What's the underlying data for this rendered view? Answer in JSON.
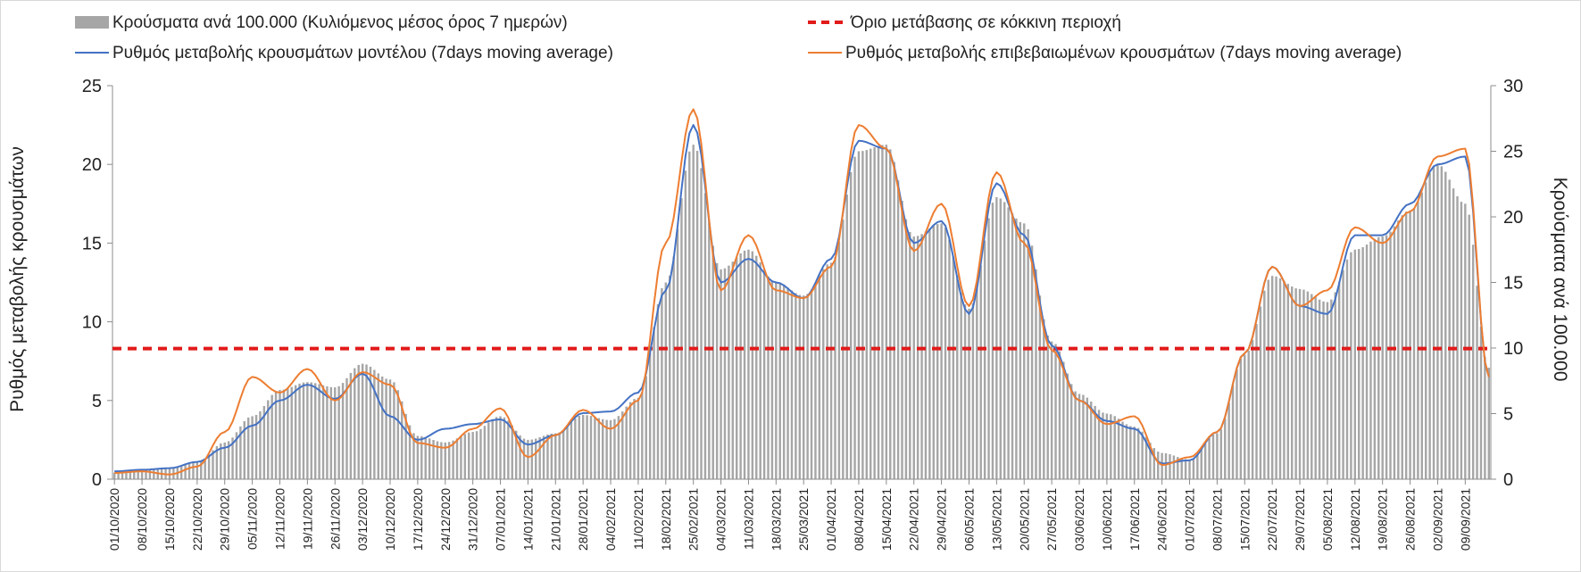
{
  "chart_data": {
    "type": "bar+line",
    "title": "",
    "legend": {
      "placement": "top",
      "entries": [
        {
          "label": "Κρούσματα ανά 100.000 (Κυλιόμενος μέσος όρος 7 ημερών)",
          "kind": "bar",
          "color": "#a6a6a6"
        },
        {
          "label": "Όριο μετάβασης σε κόκκινη περιοχή",
          "kind": "dashed-line",
          "color": "#e21a1a"
        },
        {
          "label": "Ρυθμός μεταβολής κρουσμάτων μοντέλου (7days moving average)",
          "kind": "line",
          "color": "#4472c4"
        },
        {
          "label": "Ρυθμός μεταβολής επιβεβαιωμένων κρουσμάτων (7days moving average)",
          "kind": "line",
          "color": "#ed7d31"
        }
      ]
    },
    "ylabel_left": "Ρυθμός μεταβολής κρουσμάτων",
    "ylabel_right": "Κρούσματα ανά 100.000",
    "ylim_left": [
      0,
      25
    ],
    "ylim_right": [
      0,
      30
    ],
    "yticks_left": [
      "0",
      "5",
      "10",
      "15",
      "20",
      "25"
    ],
    "yticks_right": [
      "0",
      "5",
      "10",
      "15",
      "20",
      "25",
      "30"
    ],
    "x_start": "2020-10-01",
    "x_end": "2021-09-15",
    "x_tick_labels": [
      "01/10/2020",
      "08/10/2020",
      "15/10/2020",
      "22/10/2020",
      "29/10/2020",
      "05/11/2020",
      "12/11/2020",
      "19/11/2020",
      "26/11/2020",
      "03/12/2020",
      "10/12/2020",
      "17/12/2020",
      "24/12/2020",
      "31/12/2020",
      "07/01/2021",
      "14/01/2021",
      "21/01/2021",
      "28/01/2021",
      "04/02/2021",
      "11/02/2021",
      "18/02/2021",
      "25/02/2021",
      "04/03/2021",
      "11/03/2021",
      "18/03/2021",
      "25/03/2021",
      "01/04/2021",
      "08/04/2021",
      "15/04/2021",
      "22/04/2021",
      "29/04/2021",
      "06/05/2021",
      "13/05/2021",
      "20/05/2021",
      "27/05/2021",
      "03/06/2021",
      "10/06/2021",
      "17/06/2021",
      "24/06/2021",
      "01/07/2021",
      "08/07/2021",
      "15/07/2021",
      "22/07/2021",
      "29/07/2021",
      "05/08/2021",
      "12/08/2021",
      "19/08/2021",
      "26/08/2021",
      "02/09/2021",
      "09/09/2021"
    ],
    "threshold": {
      "name": "Όριο μετάβασης σε κόκκινη περιοχή",
      "axis": "left",
      "value": 8.3
    },
    "series": [
      {
        "name": "Κρούσματα ανά 100.000 (Κυλιόμενος μέσος όρος 7 ημερών)",
        "type": "bar",
        "axis": "right",
        "points": [
          [
            "2020-10-01",
            0.5
          ],
          [
            "2020-10-08",
            0.7
          ],
          [
            "2020-10-15",
            0.9
          ],
          [
            "2020-10-22",
            1.3
          ],
          [
            "2020-10-29",
            2.8
          ],
          [
            "2020-11-05",
            4.8
          ],
          [
            "2020-11-12",
            6.8
          ],
          [
            "2020-11-19",
            7.4
          ],
          [
            "2020-11-26",
            7.0
          ],
          [
            "2020-12-03",
            8.8
          ],
          [
            "2020-12-10",
            7.6
          ],
          [
            "2020-12-17",
            3.3
          ],
          [
            "2020-12-24",
            2.8
          ],
          [
            "2020-12-31",
            3.6
          ],
          [
            "2021-01-07",
            4.8
          ],
          [
            "2021-01-14",
            3.0
          ],
          [
            "2021-01-21",
            3.5
          ],
          [
            "2021-01-28",
            4.9
          ],
          [
            "2021-02-04",
            4.5
          ],
          [
            "2021-02-11",
            6.2
          ],
          [
            "2021-02-18",
            15.0
          ],
          [
            "2021-02-25",
            25.5
          ],
          [
            "2021-03-04",
            16.0
          ],
          [
            "2021-03-11",
            17.5
          ],
          [
            "2021-03-18",
            15.0
          ],
          [
            "2021-03-25",
            14.0
          ],
          [
            "2021-04-01",
            16.5
          ],
          [
            "2021-04-08",
            25.0
          ],
          [
            "2021-04-15",
            25.5
          ],
          [
            "2021-04-22",
            18.5
          ],
          [
            "2021-04-29",
            19.5
          ],
          [
            "2021-05-06",
            13.0
          ],
          [
            "2021-05-13",
            21.5
          ],
          [
            "2021-05-20",
            19.5
          ],
          [
            "2021-05-27",
            10.5
          ],
          [
            "2021-06-03",
            6.5
          ],
          [
            "2021-06-10",
            5.0
          ],
          [
            "2021-06-17",
            4.0
          ],
          [
            "2021-06-24",
            2.0
          ],
          [
            "2021-07-01",
            1.5
          ],
          [
            "2021-07-08",
            3.5
          ],
          [
            "2021-07-15",
            9.5
          ],
          [
            "2021-07-22",
            15.5
          ],
          [
            "2021-07-29",
            14.5
          ],
          [
            "2021-08-05",
            13.5
          ],
          [
            "2021-08-12",
            17.5
          ],
          [
            "2021-08-19",
            18.5
          ],
          [
            "2021-08-26",
            20.5
          ],
          [
            "2021-09-02",
            24.0
          ],
          [
            "2021-09-09",
            21.0
          ],
          [
            "2021-09-15",
            8.5
          ]
        ]
      },
      {
        "name": "Ρυθμός μεταβολής κρουσμάτων μοντέλου (7days moving average)",
        "type": "line",
        "axis": "left",
        "points": [
          [
            "2020-10-01",
            0.5
          ],
          [
            "2020-10-08",
            0.6
          ],
          [
            "2020-10-15",
            0.7
          ],
          [
            "2020-10-22",
            1.1
          ],
          [
            "2020-10-29",
            2.0
          ],
          [
            "2020-11-05",
            3.4
          ],
          [
            "2020-11-12",
            5.0
          ],
          [
            "2020-11-19",
            6.0
          ],
          [
            "2020-11-26",
            5.1
          ],
          [
            "2020-12-03",
            6.7
          ],
          [
            "2020-12-10",
            4.0
          ],
          [
            "2020-12-17",
            2.5
          ],
          [
            "2020-12-24",
            3.2
          ],
          [
            "2020-12-31",
            3.5
          ],
          [
            "2021-01-07",
            3.8
          ],
          [
            "2021-01-14",
            2.2
          ],
          [
            "2021-01-21",
            2.8
          ],
          [
            "2021-01-28",
            4.2
          ],
          [
            "2021-02-04",
            4.3
          ],
          [
            "2021-02-11",
            5.5
          ],
          [
            "2021-02-18",
            12.0
          ],
          [
            "2021-02-25",
            22.5
          ],
          [
            "2021-03-04",
            12.5
          ],
          [
            "2021-03-11",
            14.0
          ],
          [
            "2021-03-18",
            12.5
          ],
          [
            "2021-03-25",
            11.5
          ],
          [
            "2021-04-01",
            14.0
          ],
          [
            "2021-04-08",
            21.5
          ],
          [
            "2021-04-15",
            21.0
          ],
          [
            "2021-04-22",
            15.0
          ],
          [
            "2021-04-29",
            16.4
          ],
          [
            "2021-05-06",
            10.5
          ],
          [
            "2021-05-13",
            18.8
          ],
          [
            "2021-05-20",
            15.5
          ],
          [
            "2021-05-27",
            8.5
          ],
          [
            "2021-06-03",
            5.0
          ],
          [
            "2021-06-10",
            3.7
          ],
          [
            "2021-06-17",
            3.2
          ],
          [
            "2021-06-24",
            1.0
          ],
          [
            "2021-07-01",
            1.2
          ],
          [
            "2021-07-08",
            3.0
          ],
          [
            "2021-07-15",
            8.0
          ],
          [
            "2021-07-22",
            13.5
          ],
          [
            "2021-07-29",
            11.0
          ],
          [
            "2021-08-05",
            10.5
          ],
          [
            "2021-08-12",
            15.5
          ],
          [
            "2021-08-19",
            15.5
          ],
          [
            "2021-08-26",
            17.5
          ],
          [
            "2021-09-02",
            20.0
          ],
          [
            "2021-09-09",
            20.5
          ],
          [
            "2021-09-15",
            6.5
          ]
        ]
      },
      {
        "name": "Ρυθμός μεταβολής επιβεβαιωμένων κρουσμάτων (7days moving average)",
        "type": "line",
        "axis": "left",
        "points": [
          [
            "2020-10-01",
            0.4
          ],
          [
            "2020-10-08",
            0.5
          ],
          [
            "2020-10-15",
            0.3
          ],
          [
            "2020-10-22",
            0.8
          ],
          [
            "2020-10-29",
            3.0
          ],
          [
            "2020-11-05",
            6.5
          ],
          [
            "2020-11-12",
            5.5
          ],
          [
            "2020-11-19",
            7.0
          ],
          [
            "2020-11-26",
            5.0
          ],
          [
            "2020-12-03",
            6.8
          ],
          [
            "2020-12-10",
            6.0
          ],
          [
            "2020-12-17",
            2.3
          ],
          [
            "2020-12-24",
            2.0
          ],
          [
            "2020-12-31",
            3.2
          ],
          [
            "2021-01-07",
            4.5
          ],
          [
            "2021-01-14",
            1.4
          ],
          [
            "2021-01-21",
            2.8
          ],
          [
            "2021-01-28",
            4.4
          ],
          [
            "2021-02-04",
            3.2
          ],
          [
            "2021-02-11",
            5.0
          ],
          [
            "2021-02-18",
            15.0
          ],
          [
            "2021-02-25",
            23.5
          ],
          [
            "2021-03-04",
            12.0
          ],
          [
            "2021-03-11",
            15.5
          ],
          [
            "2021-03-18",
            12.0
          ],
          [
            "2021-03-25",
            11.5
          ],
          [
            "2021-04-01",
            13.5
          ],
          [
            "2021-04-08",
            22.5
          ],
          [
            "2021-04-15",
            21.0
          ],
          [
            "2021-04-22",
            14.5
          ],
          [
            "2021-04-29",
            17.5
          ],
          [
            "2021-05-06",
            11.0
          ],
          [
            "2021-05-13",
            19.5
          ],
          [
            "2021-05-20",
            15.0
          ],
          [
            "2021-05-27",
            8.2
          ],
          [
            "2021-06-03",
            5.0
          ],
          [
            "2021-06-10",
            3.5
          ],
          [
            "2021-06-17",
            4.0
          ],
          [
            "2021-06-24",
            0.9
          ],
          [
            "2021-07-01",
            1.4
          ],
          [
            "2021-07-08",
            3.0
          ],
          [
            "2021-07-15",
            8.0
          ],
          [
            "2021-07-22",
            13.5
          ],
          [
            "2021-07-29",
            11.0
          ],
          [
            "2021-08-05",
            12.0
          ],
          [
            "2021-08-12",
            16.0
          ],
          [
            "2021-08-19",
            15.0
          ],
          [
            "2021-08-26",
            17.0
          ],
          [
            "2021-09-02",
            20.5
          ],
          [
            "2021-09-09",
            21.0
          ],
          [
            "2021-09-15",
            6.5
          ]
        ]
      }
    ],
    "grid": false
  }
}
